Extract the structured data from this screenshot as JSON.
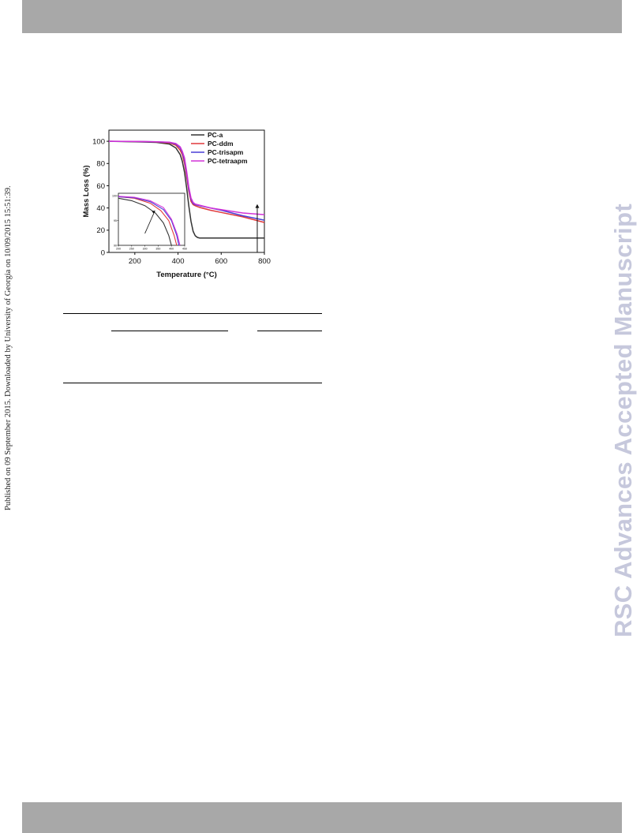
{
  "side_note": "Published on 09 September 2015. Downloaded by University of Georgia on 10/09/2015 15:51:39.",
  "watermark": "RSC Advances Accepted Manuscript",
  "chart_data": [
    {
      "type": "line",
      "title": "",
      "xlabel": "Temperature (°C)",
      "ylabel": "Mass Loss (%)",
      "xlim": [
        80,
        800
      ],
      "ylim": [
        0,
        110
      ],
      "xticks": [
        "200",
        "400",
        "600",
        "800"
      ],
      "yticks": [
        "0",
        "20",
        "40",
        "60",
        "80",
        "100"
      ],
      "legend_position": "top-right",
      "grid": false,
      "series": [
        {
          "name": "PC-a",
          "color": "#333333",
          "x": [
            80,
            200,
            300,
            360,
            390,
            410,
            420,
            430,
            440,
            450,
            460,
            470,
            480,
            490,
            500,
            520,
            550,
            600,
            700,
            800
          ],
          "y": [
            100,
            99.6,
            99,
            97.5,
            94,
            88,
            82,
            72,
            58,
            42,
            28,
            19,
            15,
            13.5,
            13,
            13,
            13,
            13,
            13,
            13
          ]
        },
        {
          "name": "PC-ddm",
          "color": "#e0393b",
          "x": [
            80,
            200,
            300,
            360,
            390,
            410,
            420,
            430,
            440,
            450,
            460,
            470,
            480,
            500,
            550,
            600,
            700,
            800
          ],
          "y": [
            100,
            99.8,
            99.4,
            98.5,
            96.5,
            92,
            88,
            80,
            68,
            55,
            46,
            43,
            42,
            40.5,
            38,
            36,
            32,
            27
          ]
        },
        {
          "name": "PC-trisapm",
          "color": "#4a3fd6",
          "x": [
            80,
            200,
            300,
            360,
            390,
            410,
            420,
            430,
            440,
            450,
            460,
            470,
            480,
            500,
            550,
            600,
            700,
            800
          ],
          "y": [
            100,
            99.8,
            99.5,
            99,
            97.5,
            94,
            90,
            83,
            71,
            57,
            48,
            44,
            43,
            42,
            40,
            38,
            33,
            29
          ]
        },
        {
          "name": "PC-tetraapm",
          "color": "#d233d8",
          "x": [
            80,
            200,
            300,
            360,
            390,
            410,
            420,
            430,
            440,
            450,
            460,
            470,
            480,
            500,
            550,
            600,
            700,
            800
          ],
          "y": [
            100,
            99.9,
            99.6,
            99.2,
            98,
            95,
            91,
            85,
            73,
            59,
            49,
            45,
            43.5,
            42.5,
            40,
            38.5,
            35.5,
            34
          ]
        }
      ]
    },
    {
      "type": "line",
      "title": "",
      "xlabel": "",
      "ylabel": "",
      "xlim": [
        200,
        450
      ],
      "ylim": [
        90,
        100.5
      ],
      "xticks": [
        "200",
        "250",
        "300",
        "350",
        "400",
        "450"
      ],
      "yticks": [
        "90",
        "95",
        "100"
      ],
      "series": [
        {
          "name": "PC-a",
          "color": "#333333",
          "x": [
            200,
            250,
            300,
            340,
            370,
            390,
            400
          ],
          "y": [
            99.5,
            99,
            98,
            96.5,
            94.5,
            92,
            90
          ]
        },
        {
          "name": "PC-ddm",
          "color": "#e0393b",
          "x": [
            200,
            260,
            320,
            360,
            390,
            410,
            420
          ],
          "y": [
            99.8,
            99.5,
            98.5,
            97,
            95,
            92,
            90
          ]
        },
        {
          "name": "PC-trisapm",
          "color": "#4a3fd6",
          "x": [
            200,
            260,
            320,
            370,
            400,
            420,
            428
          ],
          "y": [
            99.8,
            99.6,
            98.8,
            97.2,
            95,
            92,
            90
          ]
        },
        {
          "name": "PC-tetraapm",
          "color": "#d233d8",
          "x": [
            200,
            260,
            320,
            370,
            400,
            422,
            432
          ],
          "y": [
            99.9,
            99.7,
            99,
            97.6,
            95.3,
            92.2,
            90
          ]
        }
      ]
    }
  ]
}
